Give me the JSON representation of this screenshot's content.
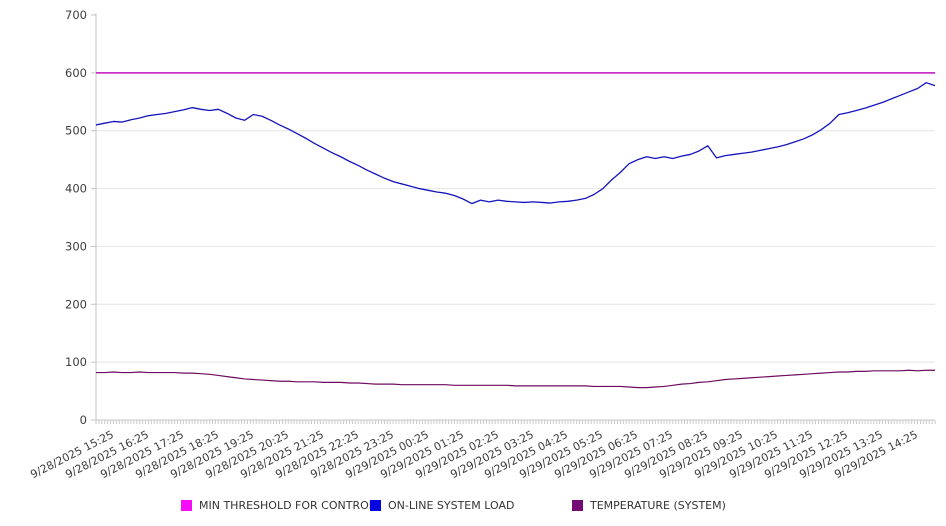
{
  "chart_data": {
    "type": "line",
    "title": "",
    "grid": "horizontal",
    "legend_position": "bottom",
    "ylim": [
      0,
      700
    ],
    "yticks": [
      0,
      100,
      200,
      300,
      400,
      500,
      600,
      700
    ],
    "x_minor_tick_minutes": 5,
    "x_label_interval_minutes": 15,
    "categories": [
      "9/28/2025 15:25",
      "9/28/2025 16:25",
      "9/28/2025 17:25",
      "9/28/2025 18:25",
      "9/28/2025 19:25",
      "9/28/2025 20:25",
      "9/28/2025 21:25",
      "9/28/2025 22:25",
      "9/28/2025 23:25",
      "9/29/2025 00:25",
      "9/29/2025 01:25",
      "9/29/2025 02:25",
      "9/29/2025 03:25",
      "9/29/2025 04:25",
      "9/29/2025 05:25",
      "9/29/2025 06:25",
      "9/29/2025 07:25",
      "9/29/2025 08:25",
      "9/29/2025 09:25",
      "9/29/2025 10:25",
      "9/29/2025 11:25",
      "9/29/2025 12:25",
      "9/29/2025 13:25",
      "9/29/2025 14:25"
    ],
    "series": [
      {
        "name": "MIN THRESHOLD FOR CONTROL",
        "swatch_color": "#f70df7",
        "line_color": "#cb30cb",
        "line_width": 1.8,
        "constant": 600
      },
      {
        "name": "ON-LINE SYSTEM LOAD",
        "swatch_color": "#0505e0",
        "line_color": "#1414bd",
        "line_width": 1.3,
        "values": [
          510,
          513,
          516,
          515,
          519,
          522,
          526,
          528,
          530,
          533,
          536,
          540,
          537,
          535,
          537,
          530,
          522,
          518,
          528,
          525,
          518,
          510,
          503,
          495,
          487,
          478,
          470,
          462,
          455,
          447,
          440,
          432,
          425,
          418,
          412,
          408,
          404,
          400,
          397,
          394,
          392,
          388,
          382,
          374,
          380,
          377,
          380,
          378,
          377,
          376,
          377,
          376,
          375,
          377,
          378,
          380,
          383,
          390,
          400,
          415,
          428,
          443,
          450,
          455,
          452,
          455,
          452,
          456,
          459,
          465,
          474,
          453,
          457,
          459,
          461,
          463,
          466,
          469,
          472,
          476,
          481,
          486,
          493,
          502,
          513,
          528,
          531,
          535,
          539,
          544,
          549,
          555,
          561,
          567,
          573,
          583,
          578
        ]
      },
      {
        "name": "TEMPERATURE (SYSTEM)",
        "swatch_color": "#740a74",
        "line_color": "#6e0b5f",
        "line_width": 1.2,
        "values": [
          82,
          82,
          83,
          82,
          82,
          83,
          82,
          82,
          82,
          82,
          81,
          81,
          80,
          79,
          77,
          75,
          73,
          71,
          70,
          69,
          68,
          67,
          67,
          66,
          66,
          66,
          65,
          65,
          65,
          64,
          64,
          63,
          62,
          62,
          62,
          61,
          61,
          61,
          61,
          61,
          61,
          60,
          60,
          60,
          60,
          60,
          60,
          60,
          59,
          59,
          59,
          59,
          59,
          59,
          59,
          59,
          59,
          58,
          58,
          58,
          58,
          57,
          56,
          56,
          57,
          58,
          60,
          62,
          63,
          65,
          66,
          68,
          70,
          71,
          72,
          73,
          74,
          75,
          76,
          77,
          78,
          79,
          80,
          81,
          82,
          83,
          83,
          84,
          84,
          85,
          85,
          85,
          85,
          86,
          85,
          86,
          86
        ]
      }
    ]
  },
  "legend": {
    "items": [
      {
        "label": "MIN THRESHOLD FOR CONTROL"
      },
      {
        "label": "ON-LINE SYSTEM LOAD"
      },
      {
        "label": "TEMPERATURE (SYSTEM)"
      }
    ]
  }
}
